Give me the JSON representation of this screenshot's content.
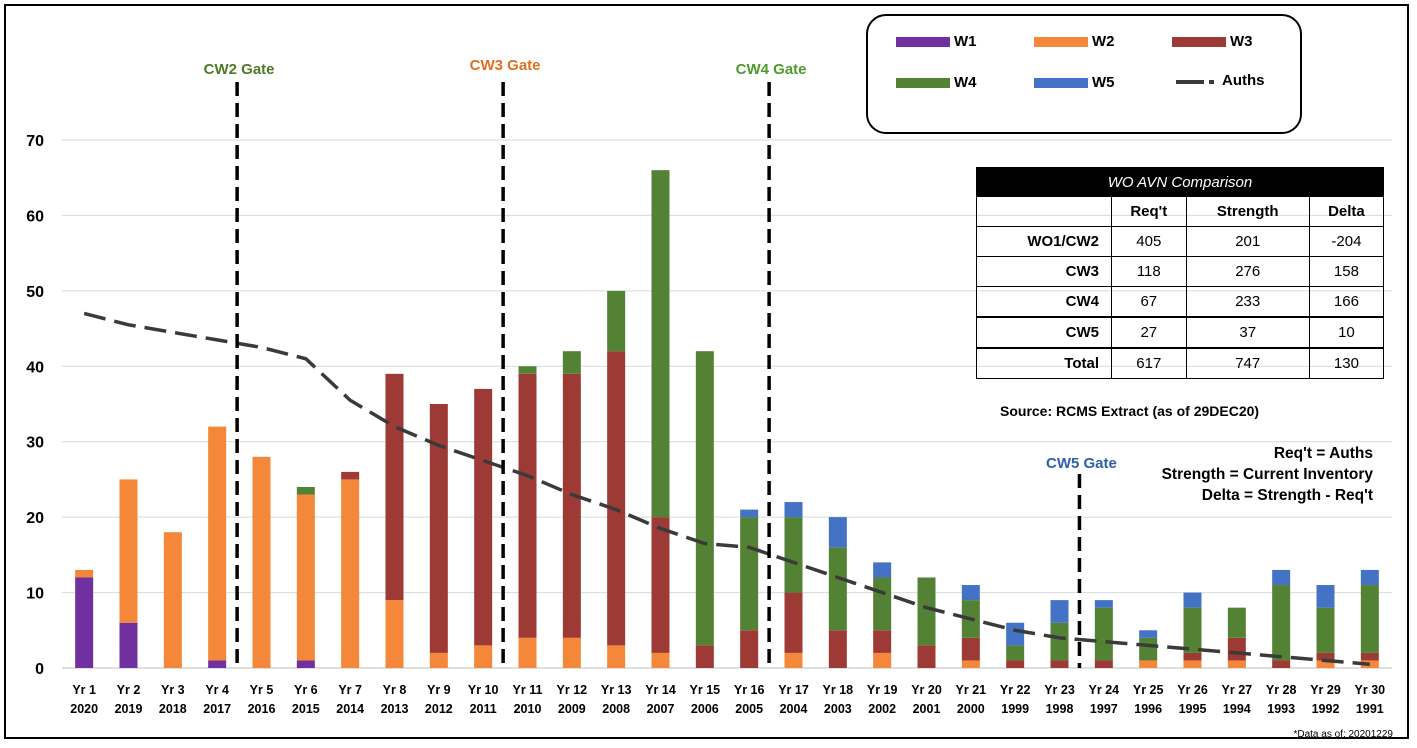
{
  "chart_data": {
    "type": "bar",
    "stacked": true,
    "categories": [
      "Yr 1",
      "Yr 2",
      "Yr 3",
      "Yr 4",
      "Yr 5",
      "Yr 6",
      "Yr 7",
      "Yr 8",
      "Yr 9",
      "Yr 10",
      "Yr 11",
      "Yr 12",
      "Yr 13",
      "Yr 14",
      "Yr 15",
      "Yr 16",
      "Yr 17",
      "Yr 18",
      "Yr 19",
      "Yr 20",
      "Yr 21",
      "Yr 22",
      "Yr 23",
      "Yr 24",
      "Yr 25",
      "Yr 26",
      "Yr 27",
      "Yr 28",
      "Yr 29",
      "Yr 30"
    ],
    "years": [
      "2020",
      "2019",
      "2018",
      "2017",
      "2016",
      "2015",
      "2014",
      "2013",
      "2012",
      "2011",
      "2010",
      "2009",
      "2008",
      "2007",
      "2006",
      "2005",
      "2004",
      "2003",
      "2002",
      "2001",
      "2000",
      "1999",
      "1998",
      "1997",
      "1996",
      "1995",
      "1994",
      "1993",
      "1992",
      "1991"
    ],
    "ylim": [
      0,
      70
    ],
    "yticks": [
      0,
      10,
      20,
      30,
      40,
      50,
      60,
      70
    ],
    "grid": true,
    "legend_position": "top-right",
    "series": [
      {
        "name": "W1",
        "color": "#7030a0",
        "values": [
          12,
          6,
          0,
          1,
          0,
          1,
          0,
          0,
          0,
          0,
          0,
          0,
          0,
          0,
          0,
          0,
          0,
          0,
          0,
          0,
          0,
          0,
          0,
          0,
          0,
          0,
          0,
          0,
          0,
          0
        ]
      },
      {
        "name": "W2",
        "color": "#f4873a",
        "values": [
          1,
          19,
          18,
          31,
          28,
          22,
          25,
          9,
          2,
          3,
          4,
          4,
          3,
          2,
          0,
          0,
          2,
          0,
          2,
          0,
          1,
          0,
          0,
          0,
          1,
          1,
          1,
          0,
          1,
          1
        ]
      },
      {
        "name": "W3",
        "color": "#9e3a35",
        "values": [
          0,
          0,
          0,
          0,
          0,
          0,
          1,
          30,
          33,
          34,
          35,
          35,
          39,
          18,
          3,
          5,
          8,
          5,
          3,
          3,
          3,
          1,
          1,
          1,
          0,
          1,
          3,
          1,
          1,
          1
        ]
      },
      {
        "name": "W4",
        "color": "#548235",
        "values": [
          0,
          0,
          0,
          0,
          0,
          1,
          0,
          0,
          0,
          0,
          1,
          3,
          8,
          46,
          39,
          15,
          10,
          11,
          7,
          9,
          5,
          2,
          5,
          7,
          3,
          6,
          4,
          10,
          6,
          9
        ]
      },
      {
        "name": "W5",
        "color": "#4472c4",
        "values": [
          0,
          0,
          0,
          0,
          0,
          0,
          0,
          0,
          0,
          0,
          0,
          0,
          0,
          0,
          0,
          1,
          2,
          4,
          2,
          0,
          2,
          3,
          3,
          1,
          1,
          2,
          0,
          2,
          3,
          2
        ]
      }
    ],
    "auths": {
      "name": "Auths",
      "color": "#3a3a3a",
      "values": [
        47,
        45.5,
        44.5,
        43.5,
        42.5,
        41,
        35.5,
        32,
        29.5,
        27.5,
        25.5,
        23,
        21,
        18.5,
        16.5,
        16,
        14,
        12,
        10,
        8,
        6.5,
        5,
        4,
        3.5,
        3,
        2.5,
        2,
        1.5,
        1,
        0.5
      ]
    },
    "gates": [
      {
        "label": "CW2 Gate",
        "color": "#4f7a28",
        "after_index": 3
      },
      {
        "label": "CW3 Gate",
        "color": "#e07020",
        "after_index": 9
      },
      {
        "label": "CW4 Gate",
        "color": "#4f9a28",
        "after_index": 15
      },
      {
        "label": "CW5 Gate",
        "color": "#2e5fa8",
        "after_index": 22
      }
    ]
  },
  "comparison": {
    "title": "WO AVN Comparison",
    "headers": [
      "Req't",
      "Strength",
      "Delta"
    ],
    "rows": [
      {
        "label": "WO1/CW2",
        "req": "405",
        "strength": "201",
        "delta": "-204"
      },
      {
        "label": "CW3",
        "req": "118",
        "strength": "276",
        "delta": "158"
      },
      {
        "label": "CW4",
        "req": "67",
        "strength": "233",
        "delta": "166"
      },
      {
        "label": "CW5",
        "req": "27",
        "strength": "37",
        "delta": "10"
      },
      {
        "label": "Total",
        "req": "617",
        "strength": "747",
        "delta": "130"
      }
    ]
  },
  "source": "Source: RCMS Extract (as of 29DEC20)",
  "notes": [
    "Req't = Auths",
    "Strength = Current Inventory",
    "Delta = Strength - Req't"
  ],
  "legend": {
    "w1": "W1",
    "w2": "W2",
    "w3": "W3",
    "w4": "W4",
    "w5": "W5",
    "auths": "Auths"
  },
  "footnote": "*Data as of: 20201229"
}
